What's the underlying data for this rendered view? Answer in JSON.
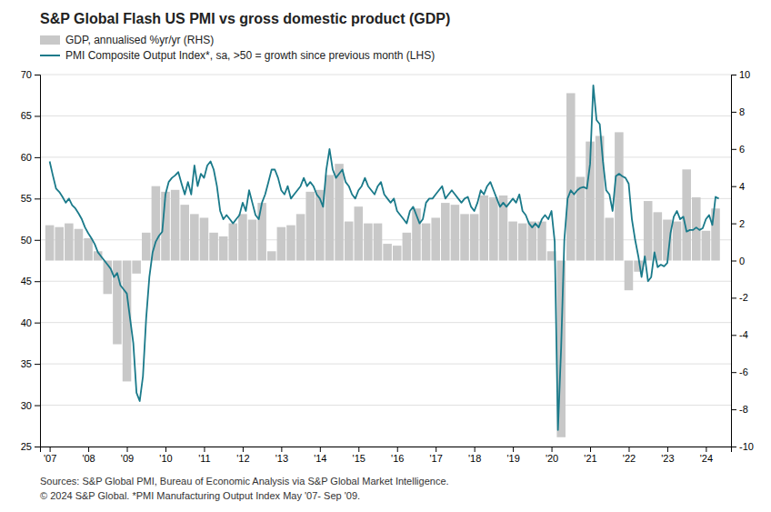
{
  "chart_data": {
    "type": "line",
    "title": "S&P Global Flash US PMI vs gross domestic product (GDP)",
    "annotations": [
      "Sources: S&P Global PMI,  Bureau of Economic Analysis via S&P Global Market Intelligence.",
      "© 2024 S&P Global.  *PMI Manufacturing Output Index May '07- Sep '09."
    ],
    "xlim": [
      2006.75,
      2024.65
    ],
    "xticks": [
      {
        "value": 2007,
        "label": "'07"
      },
      {
        "value": 2008,
        "label": "'08"
      },
      {
        "value": 2009,
        "label": "'09"
      },
      {
        "value": 2010,
        "label": "'10"
      },
      {
        "value": 2011,
        "label": "'11"
      },
      {
        "value": 2012,
        "label": "'12"
      },
      {
        "value": 2013,
        "label": "'13"
      },
      {
        "value": 2014,
        "label": "'14"
      },
      {
        "value": 2015,
        "label": "'15"
      },
      {
        "value": 2016,
        "label": "'16"
      },
      {
        "value": 2017,
        "label": "'17"
      },
      {
        "value": 2018,
        "label": "'18"
      },
      {
        "value": 2019,
        "label": "'19"
      },
      {
        "value": 2020,
        "label": "'20"
      },
      {
        "value": 2021,
        "label": "'21"
      },
      {
        "value": 2022,
        "label": "'22"
      },
      {
        "value": 2023,
        "label": "'23"
      },
      {
        "value": 2024,
        "label": "'24"
      }
    ],
    "ylim": [
      25,
      70
    ],
    "yticks": [
      25,
      30,
      35,
      40,
      45,
      50,
      55,
      60,
      65,
      70
    ],
    "y2lim": [
      -10,
      10
    ],
    "y2ticks": [
      -10,
      -8,
      -6,
      -4,
      -2,
      0,
      2,
      4,
      6,
      8,
      10
    ],
    "grid": true,
    "legend": "top-left",
    "series": [
      {
        "name": "GDP, annualised %yr/yr (RHS)",
        "type": "bar",
        "axis": "y2",
        "color": "#c8c8c8",
        "x": [
          2007.0,
          2007.25,
          2007.5,
          2007.75,
          2008.0,
          2008.25,
          2008.5,
          2008.75,
          2009.0,
          2009.25,
          2009.5,
          2009.75,
          2010.0,
          2010.25,
          2010.5,
          2010.75,
          2011.0,
          2011.25,
          2011.5,
          2011.75,
          2012.0,
          2012.25,
          2012.5,
          2012.75,
          2013.0,
          2013.25,
          2013.5,
          2013.75,
          2014.0,
          2014.25,
          2014.5,
          2014.75,
          2015.0,
          2015.25,
          2015.5,
          2015.75,
          2016.0,
          2016.25,
          2016.5,
          2016.75,
          2017.0,
          2017.25,
          2017.5,
          2017.75,
          2018.0,
          2018.25,
          2018.5,
          2018.75,
          2019.0,
          2019.25,
          2019.5,
          2019.75,
          2020.0,
          2020.25,
          2020.5,
          2020.75,
          2021.0,
          2021.25,
          2021.5,
          2021.75,
          2022.0,
          2022.25,
          2022.5,
          2022.75,
          2023.0,
          2023.25,
          2023.5,
          2023.75,
          2024.0,
          2024.25
        ],
        "values": [
          1.9,
          1.8,
          2.0,
          1.7,
          1.2,
          0.5,
          -1.8,
          -4.5,
          -6.5,
          -0.7,
          1.5,
          4.0,
          3.7,
          3.8,
          3.0,
          2.5,
          2.3,
          1.5,
          1.3,
          2.0,
          2.5,
          2.2,
          3.1,
          0.5,
          1.8,
          1.9,
          2.5,
          3.7,
          3.8,
          4.6,
          5.2,
          2.1,
          2.9,
          2.0,
          2.0,
          0.9,
          0.8,
          1.5,
          2.8,
          2.0,
          2.3,
          3.1,
          3.0,
          2.5,
          2.5,
          3.5,
          3.4,
          3.5,
          2.1,
          2.0,
          2.1,
          2.1,
          0.5,
          -9.5,
          9.0,
          4.5,
          6.4,
          6.7,
          2.3,
          6.9,
          -1.6,
          -0.6,
          3.2,
          2.6,
          2.2,
          2.1,
          4.9,
          3.4,
          1.6,
          2.8
        ]
      },
      {
        "name": "PMI Composite Output Index*, sa, >50 = growth since previous month (LHS)",
        "type": "line",
        "color": "#1a7a8a",
        "x": [
          2007.0,
          2007.083,
          2007.167,
          2007.25,
          2007.333,
          2007.417,
          2007.5,
          2007.583,
          2007.667,
          2007.75,
          2007.833,
          2007.917,
          2008.0,
          2008.083,
          2008.167,
          2008.25,
          2008.333,
          2008.417,
          2008.5,
          2008.583,
          2008.667,
          2008.75,
          2008.833,
          2008.917,
          2009.0,
          2009.083,
          2009.167,
          2009.25,
          2009.333,
          2009.417,
          2009.5,
          2009.583,
          2009.667,
          2009.75,
          2009.833,
          2009.917,
          2010.0,
          2010.083,
          2010.167,
          2010.25,
          2010.333,
          2010.417,
          2010.5,
          2010.583,
          2010.667,
          2010.75,
          2010.833,
          2010.917,
          2011.0,
          2011.083,
          2011.167,
          2011.25,
          2011.333,
          2011.417,
          2011.5,
          2011.583,
          2011.667,
          2011.75,
          2011.833,
          2011.917,
          2012.0,
          2012.083,
          2012.167,
          2012.25,
          2012.333,
          2012.417,
          2012.5,
          2012.583,
          2012.667,
          2012.75,
          2012.833,
          2012.917,
          2013.0,
          2013.083,
          2013.167,
          2013.25,
          2013.333,
          2013.417,
          2013.5,
          2013.583,
          2013.667,
          2013.75,
          2013.833,
          2013.917,
          2014.0,
          2014.083,
          2014.167,
          2014.25,
          2014.333,
          2014.417,
          2014.5,
          2014.583,
          2014.667,
          2014.75,
          2014.833,
          2014.917,
          2015.0,
          2015.083,
          2015.167,
          2015.25,
          2015.333,
          2015.417,
          2015.5,
          2015.583,
          2015.667,
          2015.75,
          2015.833,
          2015.917,
          2016.0,
          2016.083,
          2016.167,
          2016.25,
          2016.333,
          2016.417,
          2016.5,
          2016.583,
          2016.667,
          2016.75,
          2016.833,
          2016.917,
          2017.0,
          2017.083,
          2017.167,
          2017.25,
          2017.333,
          2017.417,
          2017.5,
          2017.583,
          2017.667,
          2017.75,
          2017.833,
          2017.917,
          2018.0,
          2018.083,
          2018.167,
          2018.25,
          2018.333,
          2018.417,
          2018.5,
          2018.583,
          2018.667,
          2018.75,
          2018.833,
          2018.917,
          2019.0,
          2019.083,
          2019.167,
          2019.25,
          2019.333,
          2019.417,
          2019.5,
          2019.583,
          2019.667,
          2019.75,
          2019.833,
          2019.917,
          2020.0,
          2020.083,
          2020.167,
          2020.25,
          2020.333,
          2020.417,
          2020.5,
          2020.583,
          2020.667,
          2020.75,
          2020.833,
          2020.917,
          2021.0,
          2021.083,
          2021.167,
          2021.25,
          2021.333,
          2021.417,
          2021.5,
          2021.583,
          2021.667,
          2021.75,
          2021.833,
          2021.917,
          2022.0,
          2022.083,
          2022.167,
          2022.25,
          2022.333,
          2022.417,
          2022.5,
          2022.583,
          2022.667,
          2022.75,
          2022.833,
          2022.917,
          2023.0,
          2023.083,
          2023.167,
          2023.25,
          2023.333,
          2023.417,
          2023.5,
          2023.583,
          2023.667,
          2023.75,
          2023.833,
          2023.917,
          2024.0,
          2024.083,
          2024.167,
          2024.25,
          2024.333
        ],
        "values": [
          59.5,
          57.8,
          56.2,
          55.8,
          55.2,
          54.5,
          55.0,
          54.2,
          53.8,
          53.2,
          52.5,
          51.5,
          50.8,
          50.2,
          49.5,
          48.5,
          48.0,
          47.5,
          47.0,
          46.5,
          45.5,
          46.0,
          44.5,
          44.0,
          43.5,
          40.5,
          37.5,
          31.5,
          30.5,
          33.5,
          40.5,
          45.5,
          48.5,
          49.8,
          50.5,
          51.0,
          55.5,
          57.0,
          57.5,
          57.8,
          58.2,
          56.8,
          55.5,
          57.0,
          55.5,
          59.0,
          56.5,
          58.0,
          57.5,
          59.0,
          59.5,
          58.5,
          56.5,
          53.5,
          52.5,
          53.0,
          52.5,
          52.0,
          52.5,
          53.0,
          54.5,
          53.5,
          56.0,
          54.5,
          53.0,
          52.5,
          54.5,
          55.5,
          57.0,
          58.5,
          58.5,
          57.5,
          56.0,
          55.5,
          56.5,
          55.0,
          55.5,
          56.0,
          56.5,
          57.5,
          56.5,
          57.0,
          56.5,
          55.5,
          55.0,
          54.0,
          58.5,
          61.0,
          58.5,
          57.5,
          58.0,
          58.5,
          57.0,
          56.5,
          55.5,
          55.0,
          56.0,
          56.5,
          57.5,
          56.5,
          56.0,
          55.5,
          56.5,
          57.0,
          55.5,
          55.0,
          54.5,
          55.0,
          53.5,
          53.0,
          52.5,
          52.0,
          53.5,
          54.0,
          53.0,
          52.0,
          52.5,
          54.5,
          55.0,
          55.0,
          55.5,
          56.0,
          56.5,
          55.0,
          55.5,
          56.0,
          55.5,
          55.0,
          54.5,
          55.0,
          55.2,
          54.0,
          53.5,
          54.5,
          56.0,
          55.5,
          56.5,
          57.0,
          56.0,
          55.0,
          54.0,
          54.5,
          54.0,
          54.5,
          55.0,
          54.5,
          55.5,
          53.5,
          53.0,
          52.0,
          51.5,
          52.0,
          51.5,
          52.5,
          53.0,
          52.5,
          53.5,
          49.8,
          27.0,
          37.0,
          50.0,
          55.0,
          56.0,
          55.5,
          56.0,
          56.3,
          56.4,
          56.2,
          59.2,
          68.7,
          64.5,
          64.0,
          59.5,
          56.0,
          55.5,
          53.5,
          57.7,
          58.0,
          57.7,
          57.5,
          56.8,
          52.5,
          50.0,
          48.0,
          45.5,
          48.0,
          45.0,
          45.5,
          48.5,
          46.7,
          47.0,
          46.8,
          47.2,
          50.8,
          52.8,
          53.5,
          52.5,
          52.8,
          51.0,
          51.2,
          51.2,
          51.5,
          51.2,
          51.4,
          52.5,
          53.0,
          51.8,
          55.2,
          55.0
        ]
      }
    ]
  }
}
